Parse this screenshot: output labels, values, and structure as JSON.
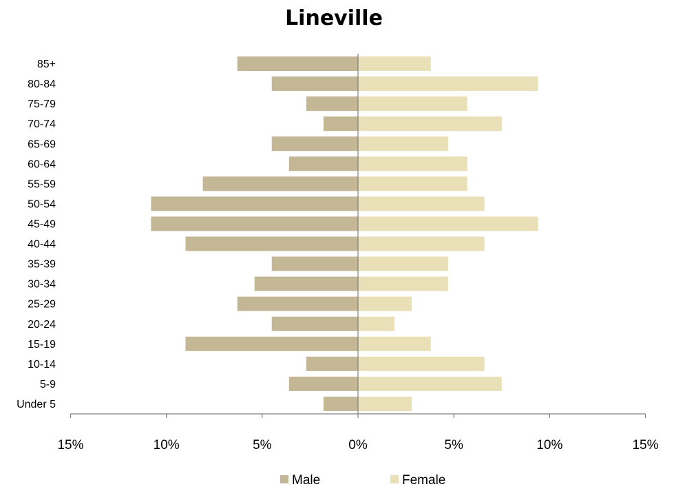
{
  "chart_data": {
    "type": "bar",
    "orientation": "horizontal",
    "title": "Lineville",
    "categories": [
      "85+",
      "80-84",
      "75-79",
      "70-74",
      "65-69",
      "60-64",
      "55-59",
      "50-54",
      "45-49",
      "40-44",
      "35-39",
      "30-34",
      "25-29",
      "20-24",
      "15-19",
      "10-14",
      "5-9",
      "Under 5"
    ],
    "series": [
      {
        "name": "Male",
        "color": "#c4b796",
        "values": [
          6.3,
          4.5,
          2.7,
          1.8,
          4.5,
          3.6,
          8.1,
          10.8,
          10.8,
          9.0,
          4.5,
          5.4,
          6.3,
          4.5,
          9.0,
          2.7,
          3.6,
          1.8
        ]
      },
      {
        "name": "Female",
        "color": "#e9e0b7",
        "values": [
          3.8,
          9.4,
          5.7,
          7.5,
          4.7,
          5.7,
          5.7,
          6.6,
          9.4,
          6.6,
          4.7,
          4.7,
          2.8,
          1.9,
          3.8,
          6.6,
          7.5,
          2.8
        ]
      }
    ],
    "xlim": [
      -15,
      15
    ],
    "x_tick_values": [
      -15,
      -10,
      -5,
      0,
      5,
      10,
      15
    ],
    "x_tick_labels": [
      "15%",
      "10%",
      "5%",
      "0%",
      "5%",
      "10%",
      "15%"
    ],
    "male_plotted_left": true,
    "grid": false,
    "legend_position": "bottom"
  }
}
